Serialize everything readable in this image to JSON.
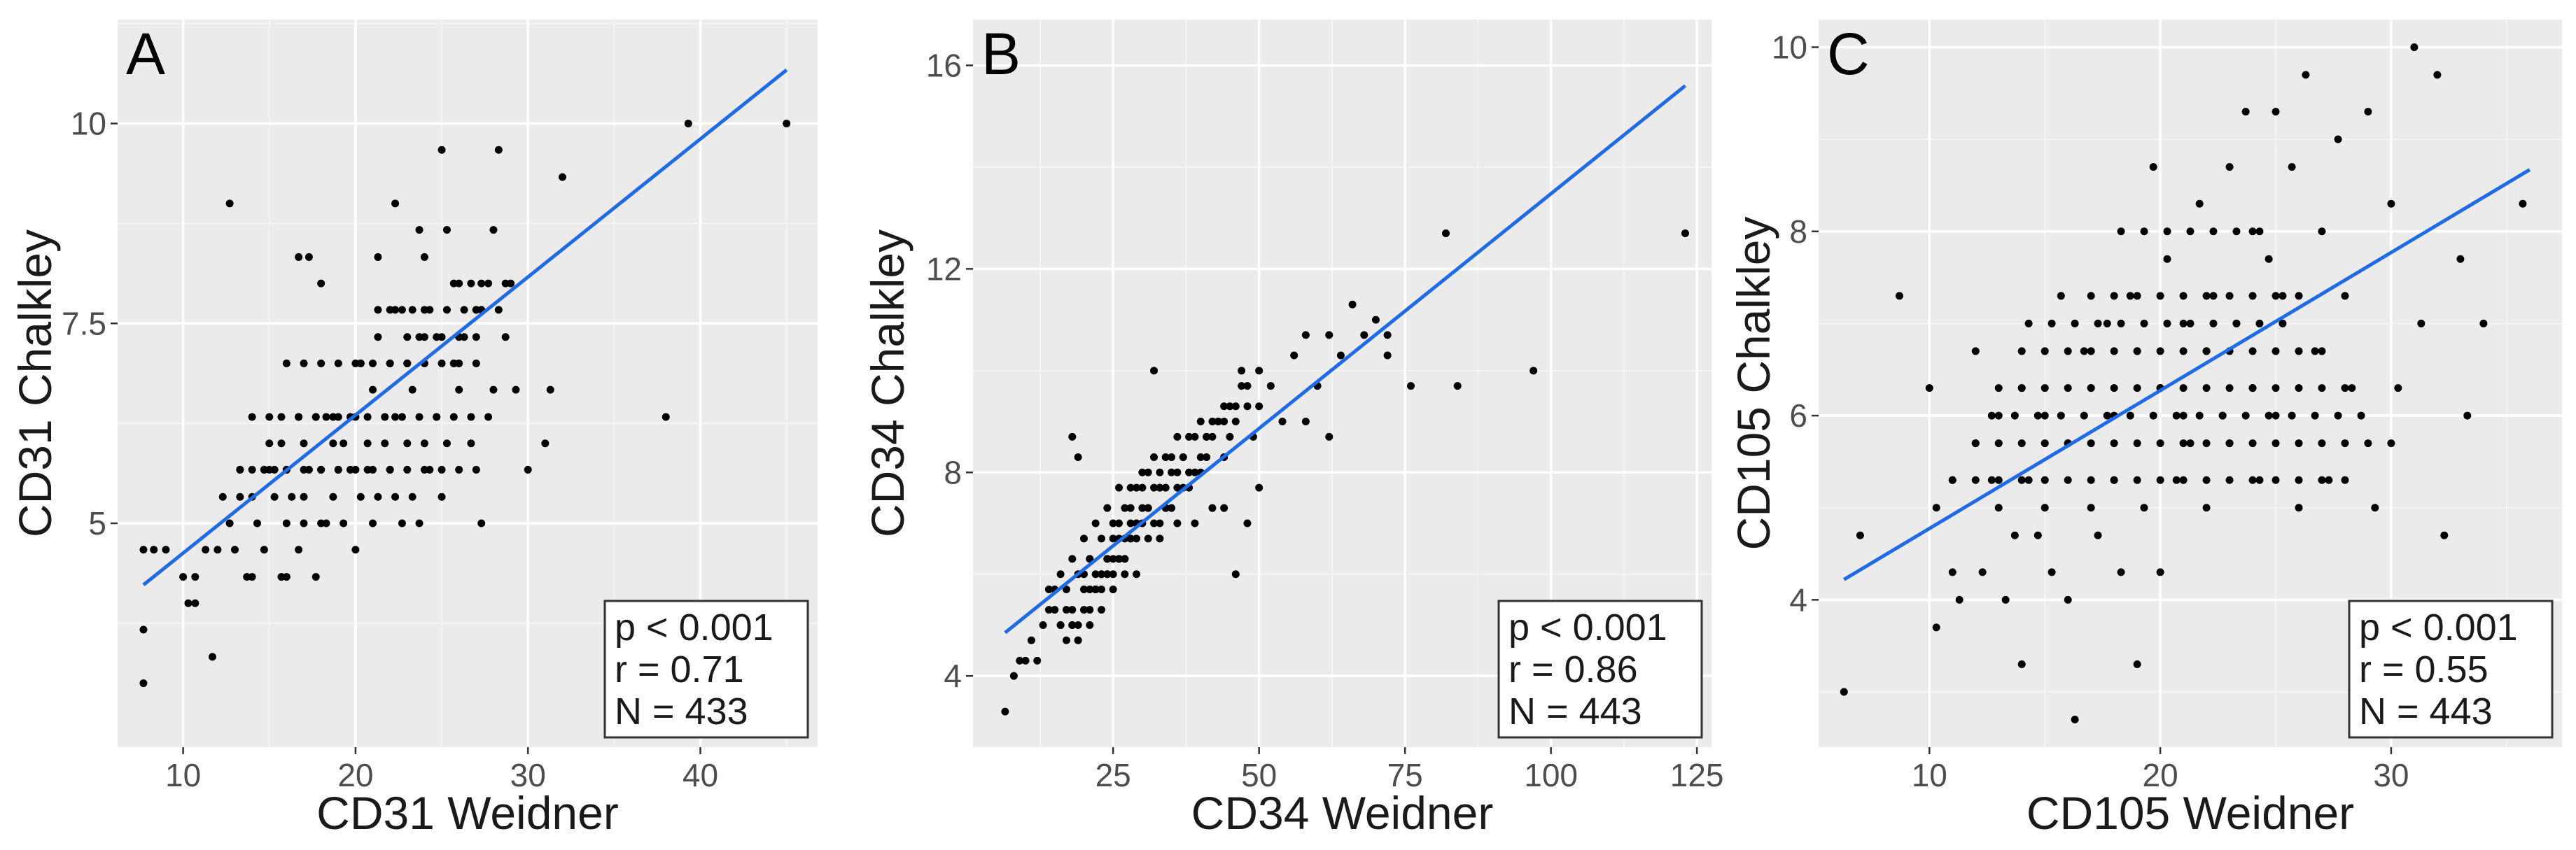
{
  "colors": {
    "panel_bg": "#ebebeb",
    "grid_major": "#ffffff",
    "grid_minor": "#f4f4f4",
    "points": "#000000",
    "fit_line": "#1f6ae6",
    "stats_box_fill": "#ffffff",
    "stats_box_border": "#333333"
  },
  "chart_data": [
    {
      "type": "scatter",
      "panel_label": "A",
      "xlabel": "CD31 Weidner",
      "ylabel": "CD31 Chalkley",
      "xlim": [
        6.2,
        46.8
      ],
      "ylim": [
        2.2,
        11.3
      ],
      "xticks": [
        10,
        20,
        30,
        40
      ],
      "xtick_labels": [
        "10",
        "20",
        "30",
        "40"
      ],
      "yticks": [
        5,
        7.5,
        10
      ],
      "ytick_labels": [
        "5",
        "7.5",
        "10"
      ],
      "fit_line": {
        "x0": 7.7,
        "y0": 4.23,
        "x1": 45,
        "y1": 10.67
      },
      "stats": {
        "p": "p < 0.001",
        "r": "r = 0.71",
        "n": "N = 433"
      },
      "points_x": [
        7.7,
        7.7,
        7.7,
        8.3,
        9,
        10,
        10.3,
        10.7,
        10.7,
        11.3,
        11.7,
        12,
        12.3,
        12.7,
        13,
        13.3,
        13.3,
        13.7,
        14,
        14,
        14,
        14.3,
        14.7,
        14.7,
        15,
        15.3,
        15.3,
        15.7,
        15.7,
        16,
        16,
        16,
        16.3,
        16.7,
        16.7,
        17,
        17,
        17,
        17.3,
        17.7,
        17.7,
        18,
        18,
        18.3,
        18.3,
        18.7,
        18.7,
        19,
        19,
        19.3,
        19.3,
        19.7,
        20,
        20,
        20.3,
        20.3,
        20.7,
        20.7,
        21,
        21,
        21.3,
        21.3,
        21.7,
        22,
        22,
        22.3,
        22.3,
        22.7,
        22.7,
        23,
        23,
        23.3,
        23.3,
        23.7,
        23.7,
        24,
        24,
        24.3,
        24.7,
        25,
        25,
        25.3,
        25.7,
        26,
        26.3,
        26.7,
        27,
        27.3,
        27.7,
        28,
        28.3,
        28.7,
        29,
        29.3,
        30,
        31,
        31.3,
        32,
        38,
        39.3,
        45,
        16.7,
        17.3,
        18,
        21.3,
        22.3,
        23.7,
        24,
        25.3,
        26,
        27,
        28,
        28.7,
        12.7,
        13.3,
        14,
        15,
        16,
        17,
        18,
        19,
        20,
        21,
        22,
        23,
        24,
        25,
        26,
        27,
        14.7,
        15.7,
        16.7,
        17.7,
        18.7,
        19.7,
        20.7,
        21.7,
        22.7,
        23.7,
        24.7,
        25.7,
        26.7,
        27.7,
        15,
        16,
        17,
        18,
        19,
        20,
        21,
        22,
        23,
        24,
        25,
        26,
        27,
        20.3,
        21.3,
        22.3,
        23.3,
        24.3,
        25.3,
        26.3,
        27.3,
        28.3,
        22,
        23,
        24,
        25,
        26,
        27,
        24.7,
        25.7,
        26.7,
        27.3
      ],
      "points_y": [
        3,
        3.67,
        4.67,
        4.67,
        4.67,
        4.33,
        4,
        4,
        4.33,
        4.67,
        3.33,
        4.67,
        5.33,
        5,
        4.67,
        5.33,
        5.67,
        4.33,
        4.33,
        5.33,
        6.33,
        5,
        5.67,
        4.67,
        6,
        5.33,
        5.67,
        4.33,
        6,
        4.33,
        5,
        5.67,
        5.33,
        6.33,
        4.67,
        5,
        5.33,
        6,
        5.67,
        4.33,
        6.33,
        5,
        5.67,
        6.33,
        5,
        6,
        5.33,
        6.33,
        5.67,
        5,
        6,
        5.67,
        4.67,
        6.33,
        5.33,
        7,
        5.67,
        6,
        5,
        6.67,
        5.33,
        7.33,
        6,
        5.67,
        7,
        5.33,
        6.33,
        5,
        7.67,
        6,
        7,
        5.33,
        6.67,
        7.33,
        5,
        6,
        7.67,
        5.67,
        6.33,
        5.33,
        9.67,
        6,
        7,
        6.67,
        7.33,
        6,
        7.67,
        5,
        8,
        6.67,
        9.67,
        7.33,
        8,
        6.67,
        5.67,
        6,
        6.67,
        9.33,
        6.33,
        10,
        10,
        8.33,
        8.33,
        8,
        8.33,
        9,
        8.67,
        8.33,
        8.67,
        8,
        7.67,
        8.67,
        8,
        9,
        5.67,
        5.67,
        5.67,
        5.67,
        5.67,
        5.67,
        5.67,
        5.67,
        5.67,
        5.67,
        5.67,
        5.67,
        5.67,
        5.67,
        5.67,
        5.67,
        6.33,
        6.33,
        6.33,
        6.33,
        6.33,
        6.33,
        6.33,
        6.33,
        6.33,
        6.33,
        6.33,
        6.33,
        6.33,
        6.33,
        7,
        7,
        7,
        7,
        7,
        7,
        7,
        7,
        7,
        7,
        7,
        7,
        7,
        7.67,
        7.67,
        7.67,
        7.67,
        7.67,
        7.67,
        7.67,
        7.67,
        7.67,
        7.33,
        7.33,
        7.33,
        7.33,
        7.33,
        7.33,
        8,
        8,
        8,
        8
      ]
    },
    {
      "type": "scatter",
      "panel_label": "B",
      "xlabel": "CD34 Weidner",
      "ylabel": "CD34 Chalkley",
      "xlim": [
        1.0,
        127.5
      ],
      "ylim": [
        2.6,
        16.9
      ],
      "xticks": [
        25,
        50,
        75,
        100,
        125
      ],
      "xtick_labels": [
        "25",
        "50",
        "75",
        "100",
        "125"
      ],
      "yticks": [
        4,
        8,
        12,
        16
      ],
      "ytick_labels": [
        "4",
        "8",
        "12",
        "16"
      ],
      "fit_line": {
        "x0": 6.5,
        "y0": 4.85,
        "x1": 123,
        "y1": 15.6
      },
      "stats": {
        "p": "p < 0.001",
        "r": "r = 0.86",
        "n": "N = 443"
      },
      "points_x": [
        6.5,
        8,
        9,
        10,
        11,
        12,
        13,
        14,
        15,
        16,
        17,
        18,
        19,
        20,
        21,
        22,
        23,
        24,
        25,
        26,
        27,
        28,
        29,
        30,
        31,
        32,
        33,
        34,
        35,
        36,
        37,
        38,
        39,
        40,
        41,
        42,
        43,
        44,
        45,
        46,
        47,
        48,
        49,
        50,
        52,
        54,
        56,
        58,
        60,
        62,
        64,
        66,
        68,
        70,
        72,
        72,
        76,
        82,
        84,
        97,
        123,
        14,
        16,
        18,
        20,
        22,
        24,
        26,
        28,
        30,
        32,
        34,
        36,
        38,
        40,
        42,
        44,
        46,
        48,
        50,
        15,
        17,
        19,
        21,
        23,
        25,
        27,
        29,
        31,
        33,
        35,
        37,
        39,
        41,
        43,
        45,
        47,
        16,
        18,
        20,
        22,
        24,
        26,
        28,
        30,
        32,
        34,
        36,
        38,
        40,
        42,
        44,
        17,
        19,
        21,
        23,
        25,
        27,
        29,
        31,
        33,
        35,
        37,
        39,
        41,
        18,
        20,
        22,
        24,
        26,
        28,
        30,
        32,
        34,
        36,
        19,
        21,
        23,
        25,
        27,
        29,
        31,
        33,
        21,
        23,
        25,
        27,
        29,
        22,
        24,
        26,
        28,
        18,
        19,
        33,
        44,
        46,
        48,
        50,
        58,
        62
      ],
      "points_y": [
        3.3,
        4,
        4.3,
        4.3,
        4.7,
        4.3,
        5,
        5.3,
        5.7,
        5,
        5.3,
        5,
        4.7,
        6,
        6.3,
        5.7,
        6,
        6.3,
        6.7,
        7,
        6.3,
        7.3,
        7,
        7.7,
        7.3,
        10,
        7.7,
        7.3,
        8,
        7,
        8.3,
        7.7,
        7,
        8,
        8.7,
        7.3,
        9,
        8.3,
        8.7,
        9,
        10,
        9.3,
        8.7,
        9.3,
        9.7,
        9,
        10.3,
        10.7,
        9.7,
        10.7,
        10.3,
        11.3,
        10.7,
        11,
        10.7,
        10.3,
        9.7,
        12.7,
        9.7,
        10,
        12.7,
        5.7,
        6,
        6.3,
        6.7,
        7,
        7.3,
        7.7,
        7.7,
        8,
        8.3,
        8.3,
        8.7,
        8.7,
        9,
        9,
        9.3,
        9.3,
        9.7,
        10,
        5.3,
        5.7,
        6,
        6.3,
        6.7,
        7,
        7.3,
        7.7,
        8,
        8,
        8.3,
        8.3,
        8.7,
        8.7,
        9,
        9.3,
        9.7,
        5,
        5.3,
        5.7,
        6,
        6.3,
        6.7,
        7,
        7.3,
        7.7,
        7.7,
        8,
        8,
        8.3,
        8.7,
        9,
        4.7,
        5,
        5.7,
        6,
        6.3,
        6.7,
        7,
        7.3,
        7.7,
        7.3,
        7.7,
        8,
        8.3,
        5,
        5.3,
        5.7,
        6,
        6.3,
        6.7,
        7,
        7,
        7.3,
        7.7,
        4.7,
        5.3,
        5.7,
        6,
        6.3,
        6.7,
        6.7,
        7,
        5,
        5.3,
        5.7,
        6,
        6,
        5.7,
        6,
        6.3,
        6.7,
        8.7,
        8.3,
        6.7,
        7.3,
        6,
        7,
        7.7,
        9,
        8.7
      ]
    },
    {
      "type": "scatter",
      "panel_label": "C",
      "xlabel": "CD105 Weidner",
      "ylabel": "CD105 Chalkley",
      "xlim": [
        5.2,
        37.4
      ],
      "ylim": [
        2.4,
        10.3
      ],
      "xticks": [
        10,
        20,
        30
      ],
      "xtick_labels": [
        "10",
        "20",
        "30"
      ],
      "yticks": [
        4,
        6,
        8,
        10
      ],
      "ytick_labels": [
        "4",
        "6",
        "8",
        "10"
      ],
      "fit_line": {
        "x0": 6.3,
        "y0": 4.22,
        "x1": 36,
        "y1": 8.67
      },
      "stats": {
        "p": "p < 0.001",
        "r": "r = 0.55",
        "n": "N = 443"
      },
      "points_x": [
        6.3,
        7,
        8.7,
        10,
        10.3,
        10.3,
        11,
        11,
        11.3,
        12,
        12,
        12.3,
        12.7,
        13,
        13,
        13.3,
        13.7,
        14,
        14,
        14.3,
        14.3,
        14.7,
        15,
        15,
        15.3,
        15.7,
        16,
        16,
        16.3,
        16.7,
        17,
        17,
        17.3,
        17.7,
        18,
        18,
        18.3,
        18.7,
        19,
        19,
        19.3,
        19.7,
        20,
        20,
        20.3,
        20.7,
        21,
        21,
        21.3,
        21.7,
        22,
        22,
        22.3,
        22.7,
        23,
        23,
        23.3,
        23.7,
        24,
        24,
        24.3,
        24.7,
        25,
        25,
        25.3,
        25.7,
        26,
        26.3,
        26.7,
        27,
        27.3,
        27.7,
        28,
        28.3,
        29,
        29.3,
        30,
        30.3,
        31,
        31.3,
        32,
        32.3,
        33,
        33.3,
        34,
        35.7,
        12,
        13,
        14,
        15,
        16,
        17,
        18,
        19,
        20,
        21,
        22,
        23,
        24,
        25,
        26,
        27,
        28,
        29,
        30,
        13,
        14,
        15,
        16,
        17,
        18,
        19,
        20,
        21,
        22,
        23,
        24,
        25,
        26,
        27,
        28,
        12.7,
        13.7,
        14.7,
        15.7,
        16.7,
        17.7,
        18.7,
        19.7,
        20.7,
        21.7,
        22.7,
        23.7,
        24.7,
        25.7,
        26.7,
        27.7,
        28.7,
        14,
        15,
        16,
        17,
        18,
        19,
        20,
        21,
        22,
        23,
        24,
        25,
        26,
        27,
        15.3,
        16.3,
        17.3,
        18.3,
        19.3,
        20.3,
        21.3,
        22.3,
        23.3,
        24.3,
        25.3,
        17,
        18,
        19,
        20,
        21,
        22,
        23,
        24,
        25,
        26,
        11,
        12,
        13,
        14,
        15,
        16,
        17,
        18,
        19,
        20,
        21,
        22,
        23,
        24,
        25,
        26,
        27,
        28,
        18.3,
        19.3,
        20.3,
        21.3,
        22.3,
        23.3,
        24.3
      ],
      "points_y": [
        3,
        4.7,
        7.3,
        6.3,
        5,
        3.7,
        4.3,
        5.3,
        4,
        5.7,
        6.7,
        4.3,
        5.3,
        5,
        6,
        4,
        4.7,
        3.3,
        6.3,
        5.3,
        7,
        4.7,
        5,
        6,
        4.3,
        7.3,
        4,
        5.7,
        2.7,
        6.7,
        5,
        6.3,
        4.7,
        7,
        5.3,
        6,
        4.3,
        7.3,
        3.3,
        6.7,
        5,
        8.7,
        4.3,
        6.3,
        7.7,
        5.3,
        6,
        7,
        5.7,
        8.3,
        5,
        6.7,
        7.3,
        6,
        8.7,
        5.7,
        7,
        9.3,
        6.3,
        8,
        5.3,
        7.7,
        9.3,
        6,
        7.3,
        8.7,
        5,
        9.7,
        6.7,
        8,
        5.3,
        9,
        7.3,
        6.3,
        9.3,
        5,
        8.3,
        6.3,
        10,
        7,
        9.7,
        4.7,
        7.7,
        6,
        7,
        8.3,
        5.7,
        5.7,
        5.7,
        5.7,
        5.7,
        5.7,
        5.7,
        5.7,
        5.7,
        5.7,
        5.7,
        5.7,
        5.7,
        5.7,
        5.7,
        5.7,
        5.7,
        5.7,
        5.7,
        6.3,
        6.3,
        6.3,
        6.3,
        6.3,
        6.3,
        6.3,
        6.3,
        6.3,
        6.3,
        6.3,
        6.3,
        6.3,
        6.3,
        6.3,
        6.3,
        6,
        6,
        6,
        6,
        6,
        6,
        6,
        6,
        6,
        6,
        6,
        6,
        6,
        6,
        6,
        6,
        6,
        6.7,
        6.7,
        6.7,
        6.7,
        6.7,
        6.7,
        6.7,
        6.7,
        6.7,
        6.7,
        6.7,
        6.7,
        6.7,
        6.7,
        7,
        7,
        7,
        7,
        7,
        7,
        7,
        7,
        7,
        7,
        7,
        7.3,
        7.3,
        7.3,
        7.3,
        7.3,
        7.3,
        7.3,
        7.3,
        7.3,
        7.3,
        5.3,
        5.3,
        5.3,
        5.3,
        5.3,
        5.3,
        5.3,
        5.3,
        5.3,
        5.3,
        5.3,
        5.3,
        5.3,
        5.3,
        5.3,
        5.3,
        5.3,
        5.3,
        8,
        8,
        8,
        8,
        8,
        8,
        8
      ]
    }
  ]
}
